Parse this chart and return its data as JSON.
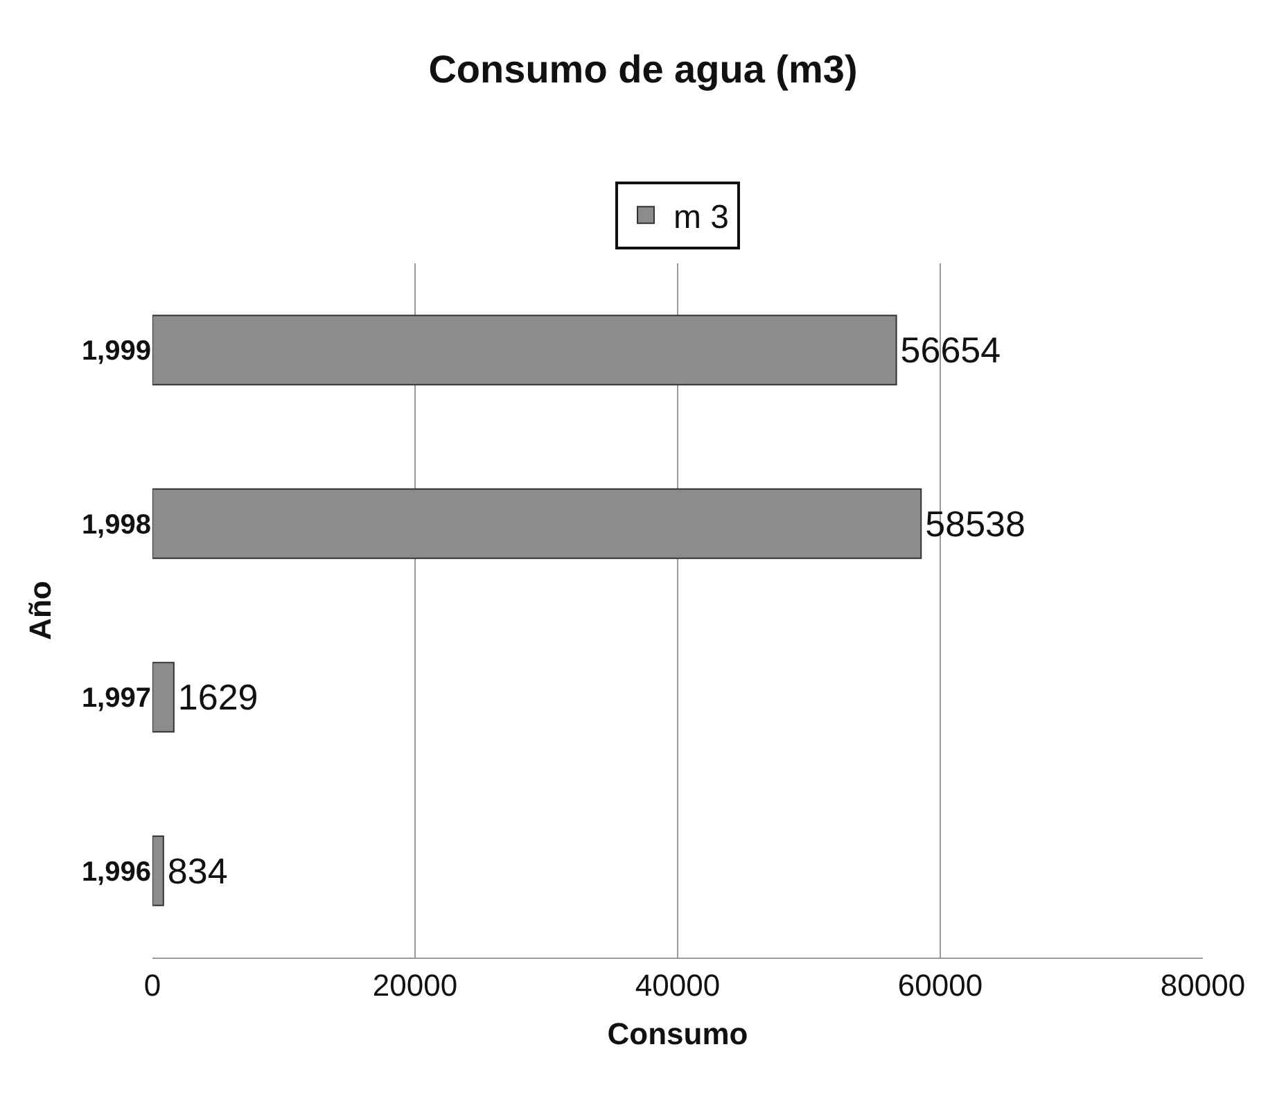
{
  "chart_data": {
    "type": "bar",
    "orientation": "horizontal",
    "title": "Consumo de agua (m3)",
    "xlabel": "Consumo",
    "ylabel": "Año",
    "categories": [
      "1,999",
      "1,998",
      "1,997",
      "1,996"
    ],
    "series": [
      {
        "name": "m 3",
        "color": "#8c8c8c",
        "values": [
          56654,
          58538,
          1629,
          834
        ]
      }
    ],
    "xlim": [
      0,
      80000
    ],
    "xticks": [
      0,
      20000,
      40000,
      60000,
      80000
    ],
    "grid": "x",
    "legend": "top",
    "data_labels": true
  }
}
